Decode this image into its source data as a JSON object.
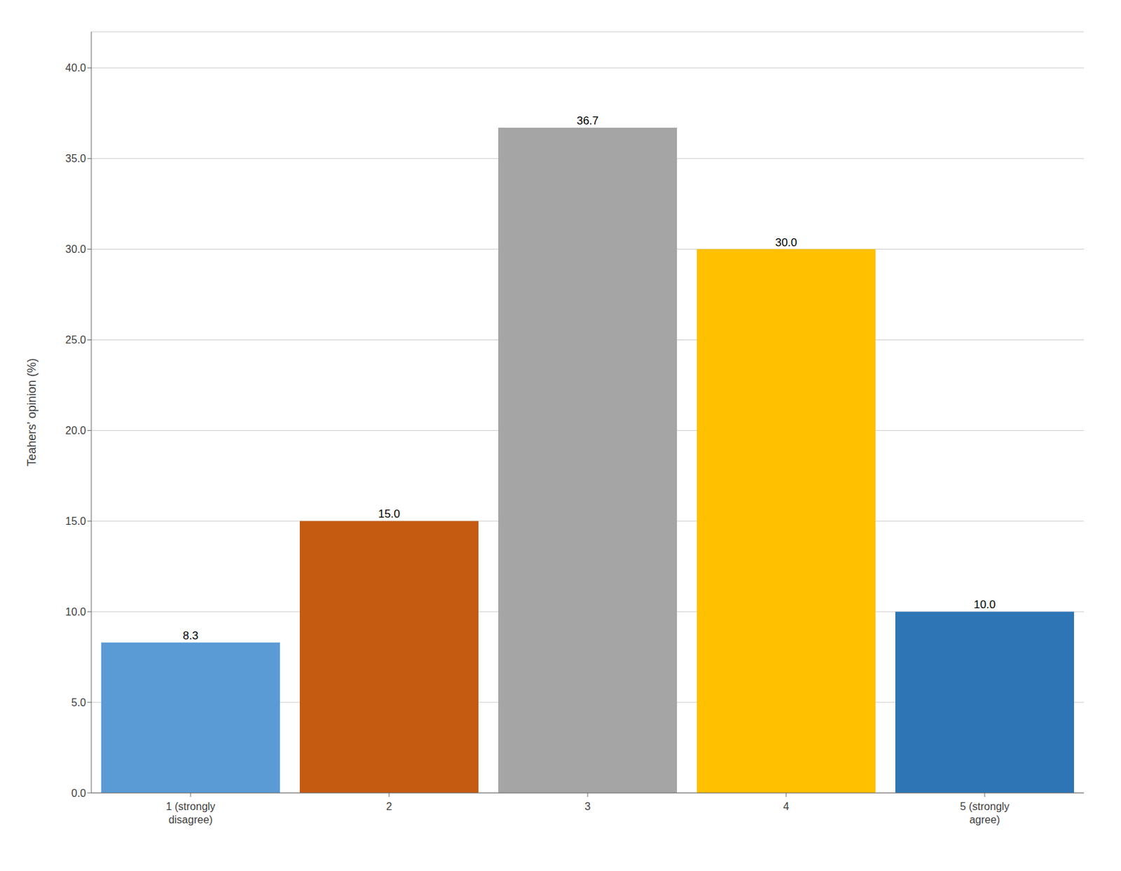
{
  "chart_data": {
    "type": "bar",
    "categories": [
      "1 (strongly\ndisagree)",
      "2",
      "3",
      "4",
      "5 (strongly\nagree)"
    ],
    "values": [
      8.3,
      15.0,
      36.7,
      30.0,
      10.0
    ],
    "value_labels": [
      "8.3",
      "15.0",
      "36.7",
      "30.0",
      "10.0"
    ],
    "data_labels": true,
    "colors": [
      "#5B9BD5",
      "#C55A11",
      "#A5A5A5",
      "#FFC000",
      "#2E75B6"
    ],
    "ylabel": "Teahers' opinion (%)",
    "ylim": [
      0,
      42
    ],
    "yticks": [
      {
        "value": 0,
        "label": "0.0"
      },
      {
        "value": 5,
        "label": "5.0"
      },
      {
        "value": 10,
        "label": "10.0"
      },
      {
        "value": 15,
        "label": "15.0"
      },
      {
        "value": 20,
        "label": "20.0"
      },
      {
        "value": 25,
        "label": "25.0"
      },
      {
        "value": 30,
        "label": "30.0"
      },
      {
        "value": 35,
        "label": "35.0"
      },
      {
        "value": 40,
        "label": "40.0"
      }
    ],
    "grid": true
  }
}
